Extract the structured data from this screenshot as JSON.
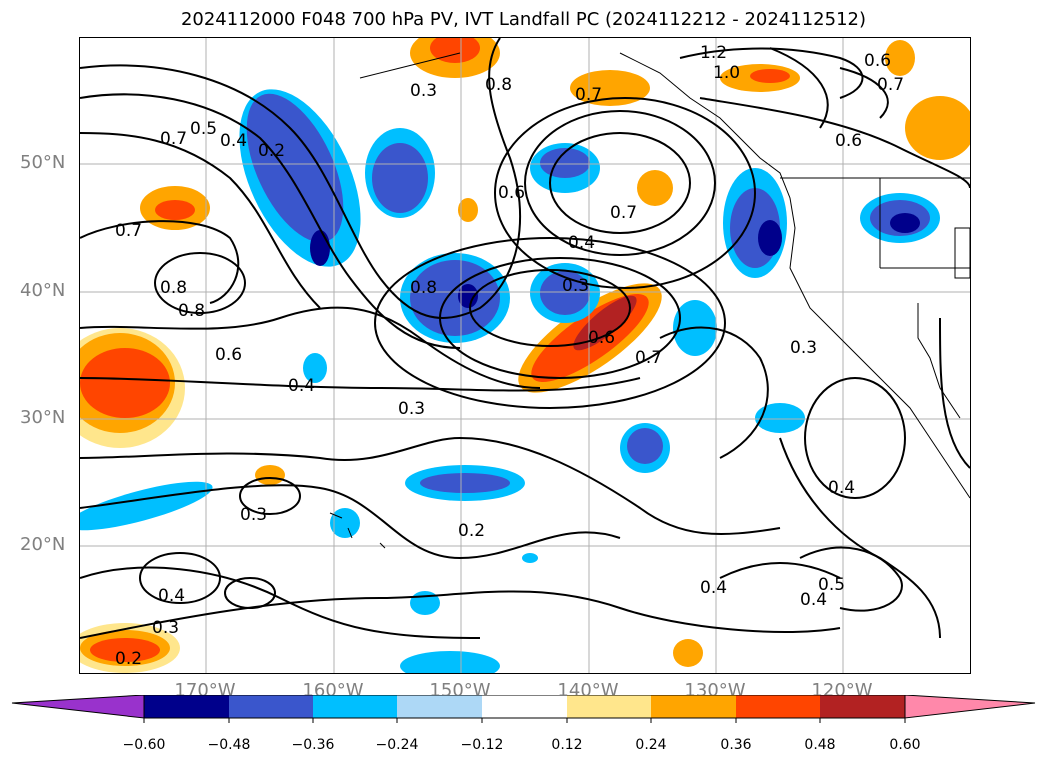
{
  "title": "2024112000 F048 700 hPa PV, IVT Landfall PC (2024112212 - 2024112512)",
  "lat_labels": [
    "50°N",
    "40°N",
    "30°N",
    "20°N"
  ],
  "lon_labels": [
    "170°W",
    "160°W",
    "150°W",
    "140°W",
    "130°W",
    "120°W"
  ],
  "contour_labels": [
    "1.2",
    "1.0",
    "0.6",
    "0.7",
    "0.8",
    "0.3",
    "0.5",
    "0.4",
    "0.2",
    "0.7",
    "0.8",
    "0.6",
    "0.7",
    "0.4",
    "0.3",
    "0.8",
    "0.6",
    "0.7",
    "0.4",
    "0.3",
    "0.3",
    "0.3",
    "0.4",
    "0.2",
    "0.4",
    "0.5",
    "0.4",
    "0.4",
    "0.3",
    "0.2",
    "0.6",
    "0.7",
    "0.7",
    "0.6",
    "0.8"
  ],
  "colorbar": {
    "ticks": [
      "−0.60",
      "−0.48",
      "−0.36",
      "−0.24",
      "−0.12",
      "0.12",
      "0.24",
      "0.36",
      "0.48",
      "0.60"
    ],
    "colors": [
      "#9932cc",
      "#00008b",
      "#3a56cc",
      "#00bfff",
      "#add8f6",
      "#ffffff",
      "#ffe68c",
      "#ffa500",
      "#ff4500",
      "#b22222",
      "#ff88aa"
    ]
  }
}
